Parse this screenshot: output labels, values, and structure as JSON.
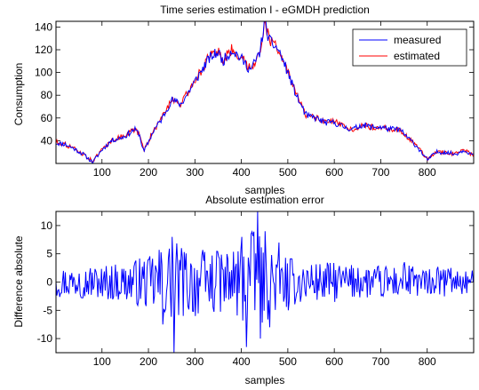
{
  "chart_data": [
    {
      "type": "line",
      "title": "Time series estimation I - eGMDH prediction",
      "xlabel": "samples",
      "ylabel": "Consumption",
      "xlim": [
        1,
        900
      ],
      "ylim": [
        20,
        145
      ],
      "xticks": [
        100,
        200,
        300,
        400,
        500,
        600,
        700,
        800
      ],
      "yticks": [
        40,
        60,
        80,
        100,
        120,
        140
      ],
      "grid": false,
      "legend_position": "top-right",
      "series": [
        {
          "name": "measured",
          "color": "#0000ff",
          "x": [
            1,
            20,
            40,
            60,
            80,
            100,
            120,
            150,
            170,
            180,
            190,
            210,
            230,
            250,
            270,
            300,
            330,
            350,
            360,
            380,
            400,
            420,
            440,
            450,
            460,
            480,
            500,
            520,
            540,
            560,
            580,
            600,
            620,
            640,
            660,
            680,
            700,
            720,
            740,
            760,
            780,
            800,
            820,
            840,
            860,
            880,
            900
          ],
          "values": [
            38,
            37,
            33,
            28,
            21,
            32,
            40,
            44,
            50,
            46,
            30,
            48,
            60,
            76,
            72,
            92,
            112,
            118,
            110,
            120,
            112,
            102,
            118,
            145,
            128,
            120,
            100,
            78,
            62,
            60,
            56,
            56,
            52,
            50,
            54,
            52,
            52,
            50,
            50,
            42,
            34,
            23,
            30,
            30,
            28,
            32,
            27
          ]
        },
        {
          "name": "estimated",
          "color": "#ff0000",
          "x": [
            1,
            20,
            40,
            60,
            80,
            100,
            120,
            150,
            170,
            180,
            190,
            210,
            230,
            250,
            270,
            300,
            330,
            350,
            360,
            380,
            400,
            420,
            440,
            450,
            460,
            480,
            500,
            520,
            540,
            560,
            580,
            600,
            620,
            640,
            660,
            680,
            700,
            720,
            740,
            760,
            780,
            800,
            820,
            840,
            860,
            880,
            900
          ],
          "values": [
            39,
            37,
            33,
            28,
            22,
            32,
            40,
            45,
            50,
            46,
            31,
            48,
            61,
            77,
            72,
            93,
            113,
            119,
            110,
            121,
            113,
            103,
            119,
            144,
            129,
            121,
            100,
            79,
            62,
            60,
            56,
            57,
            52,
            50,
            54,
            52,
            52,
            50,
            50,
            42,
            34,
            24,
            30,
            30,
            28,
            32,
            27
          ]
        }
      ]
    },
    {
      "type": "line",
      "title": "Absolute estimation error",
      "xlabel": "samples",
      "ylabel": "Difference absolute",
      "xlim": [
        1,
        900
      ],
      "ylim": [
        -12.5,
        12.5
      ],
      "xticks": [
        100,
        200,
        300,
        400,
        500,
        600,
        700,
        800
      ],
      "yticks": [
        -10,
        -5,
        0,
        5,
        10
      ],
      "grid": false,
      "series": [
        {
          "color": "#0000ff",
          "x": [
            1,
            50,
            100,
            150,
            200,
            230,
            250,
            255,
            270,
            300,
            350,
            400,
            410,
            420,
            435,
            440,
            450,
            460,
            480,
            500,
            550,
            600,
            650,
            700,
            750,
            800,
            850,
            900
          ],
          "values": [
            0,
            1.5,
            -2.5,
            2,
            4,
            -7.5,
            8,
            -12.5,
            6,
            -6,
            4.5,
            8,
            -11.5,
            8.5,
            12.5,
            -10,
            9,
            -8,
            7,
            -5,
            3,
            -3.5,
            2.5,
            -2.5,
            3.5,
            -2,
            2.5,
            0
          ],
          "envelope": [
            2.8,
            2.8,
            3.2,
            3.5,
            5.0,
            7.0,
            7.5,
            7.5,
            6.5,
            6.0,
            5.5,
            7.5,
            9.0,
            9.0,
            9.0,
            8.0,
            7.5,
            6.5,
            5.5,
            4.5,
            3.5,
            3.5,
            3.0,
            3.0,
            3.2,
            2.8,
            2.6,
            2.0
          ]
        }
      ]
    }
  ],
  "colors": {
    "measured": "#0000ff",
    "estimated": "#ff0000",
    "axes": "#000000"
  }
}
